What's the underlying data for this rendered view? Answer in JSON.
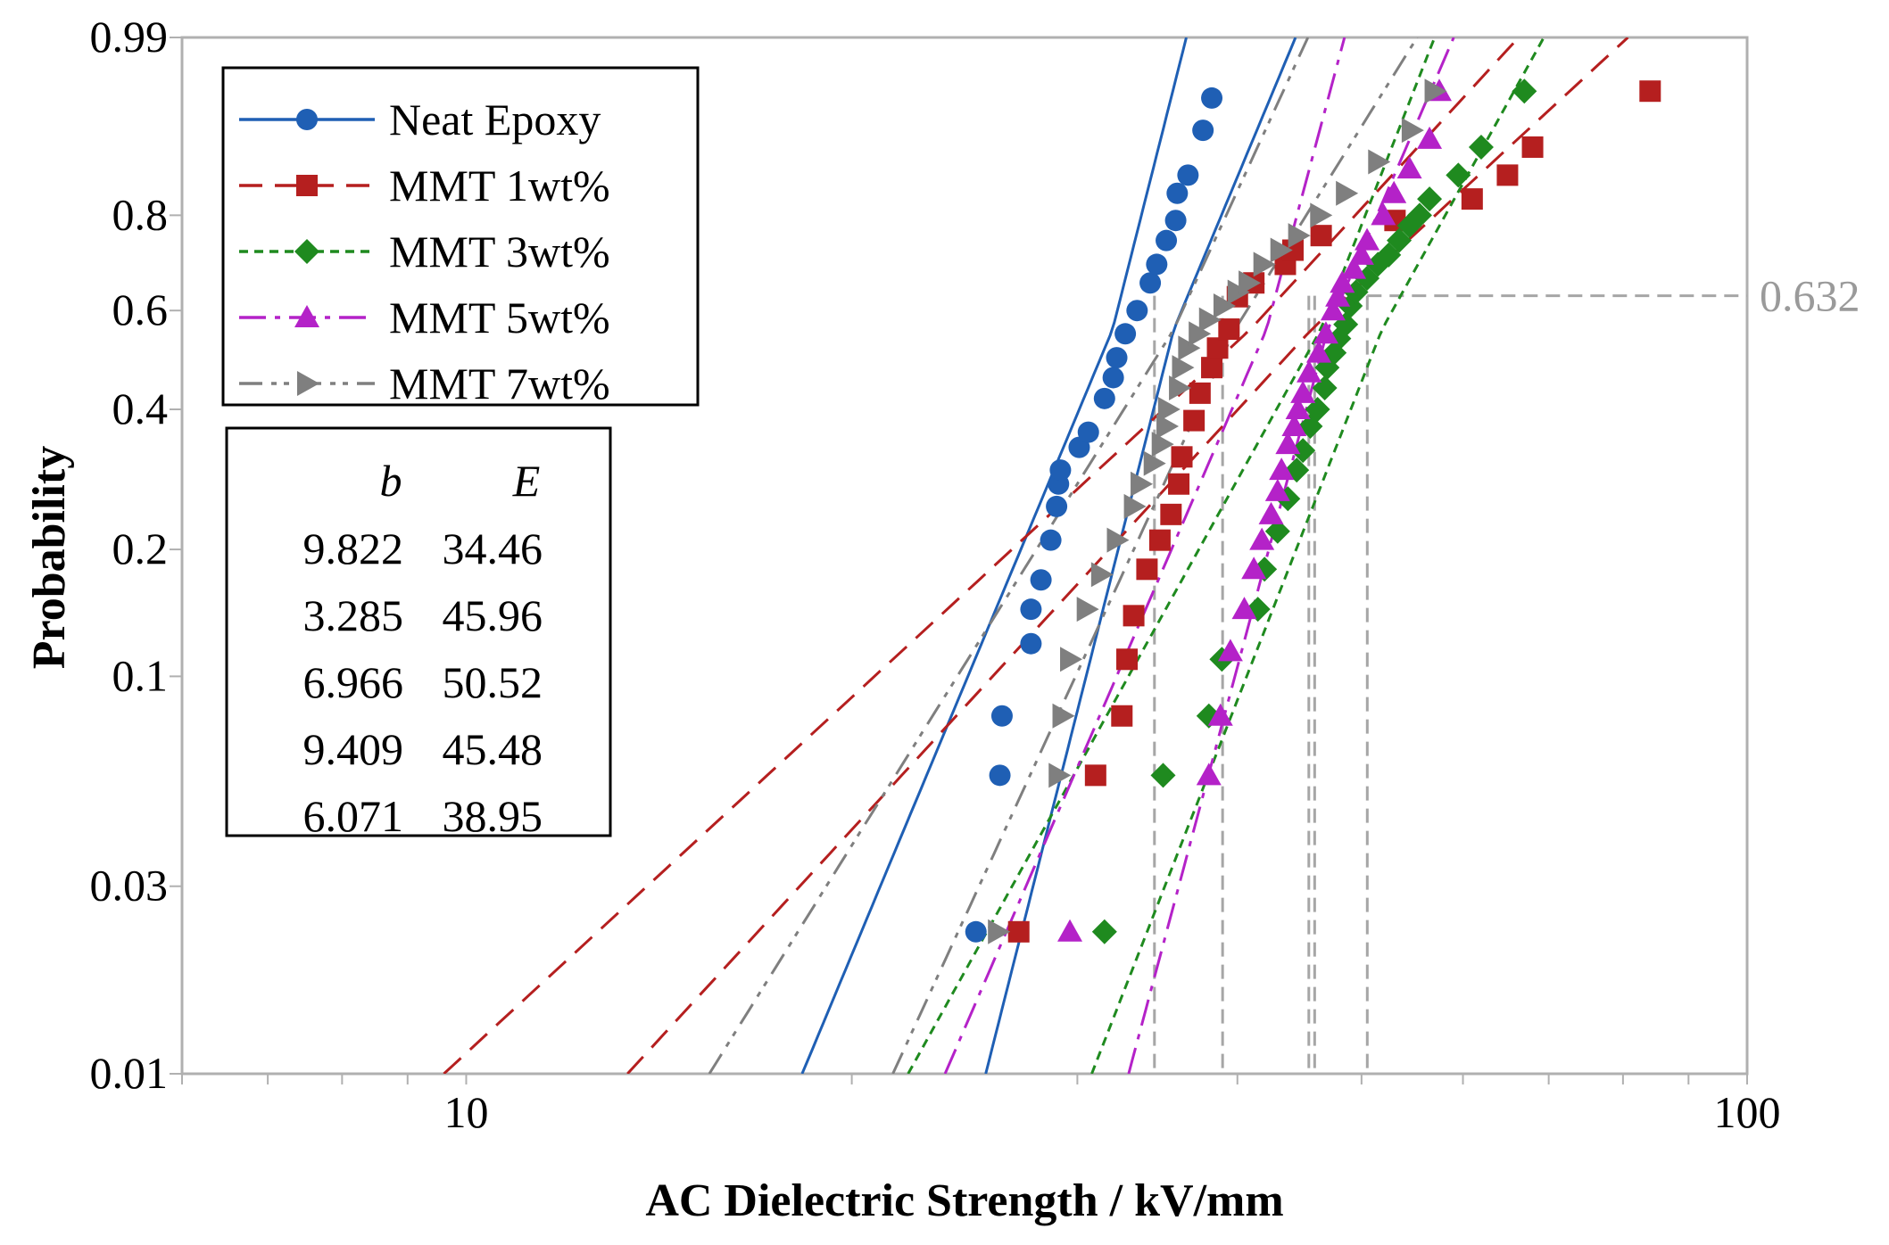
{
  "chart_data": {
    "type": "scatter",
    "subtype": "weibull-probability-plot",
    "title": "",
    "xlabel": "AC Dielectric Strength / kV/mm",
    "ylabel": "Probability",
    "x_scale": "log",
    "xlim": [
      6,
      100
    ],
    "ylim": [
      0.01,
      0.99
    ],
    "x_ticks": [
      10,
      100
    ],
    "x_tick_labels": [
      "10",
      "100"
    ],
    "y_ticks": [
      0.01,
      0.03,
      0.1,
      0.2,
      0.4,
      0.6,
      0.8,
      0.99
    ],
    "y_tick_labels": [
      "0.01",
      "0.03",
      "0.1",
      "0.2",
      "0.4",
      "0.6",
      "0.8",
      "0.99"
    ],
    "reference": {
      "probability": 0.632,
      "label": "0.632"
    },
    "table": {
      "header_b": "b",
      "header_e": "E"
    },
    "series": [
      {
        "name": "Neat Epoxy",
        "b": "9.822",
        "E": "34.46",
        "color": "#1f5fb4",
        "marker": "circle",
        "line": "solid",
        "points": [
          [
            25.0,
            0.023
          ],
          [
            26.1,
            0.057
          ],
          [
            26.2,
            0.08
          ],
          [
            27.6,
            0.12
          ],
          [
            27.6,
            0.145
          ],
          [
            28.1,
            0.17
          ],
          [
            28.6,
            0.21
          ],
          [
            28.9,
            0.25
          ],
          [
            29.0,
            0.28
          ],
          [
            29.1,
            0.3
          ],
          [
            30.1,
            0.335
          ],
          [
            30.6,
            0.36
          ],
          [
            31.5,
            0.42
          ],
          [
            32.0,
            0.46
          ],
          [
            32.2,
            0.5
          ],
          [
            32.7,
            0.55
          ],
          [
            33.4,
            0.6
          ],
          [
            34.2,
            0.66
          ],
          [
            34.6,
            0.7
          ],
          [
            35.2,
            0.75
          ],
          [
            35.8,
            0.79
          ],
          [
            35.9,
            0.84
          ],
          [
            36.6,
            0.87
          ],
          [
            37.6,
            0.93
          ],
          [
            38.2,
            0.96
          ]
        ]
      },
      {
        "name": "MMT 1wt%",
        "b": "3.285",
        "E": "45.96",
        "color": "#b51f1f",
        "marker": "square",
        "line": "dash",
        "points": [
          [
            27.0,
            0.023
          ],
          [
            31.0,
            0.057
          ],
          [
            32.5,
            0.08
          ],
          [
            32.8,
            0.11
          ],
          [
            33.2,
            0.14
          ],
          [
            34.0,
            0.18
          ],
          [
            34.8,
            0.21
          ],
          [
            35.5,
            0.24
          ],
          [
            36.0,
            0.28
          ],
          [
            36.2,
            0.32
          ],
          [
            37.0,
            0.38
          ],
          [
            37.4,
            0.43
          ],
          [
            38.2,
            0.48
          ],
          [
            38.6,
            0.52
          ],
          [
            39.4,
            0.56
          ],
          [
            40.0,
            0.63
          ],
          [
            41.2,
            0.66
          ],
          [
            43.6,
            0.7
          ],
          [
            44.2,
            0.73
          ],
          [
            46.5,
            0.76
          ],
          [
            53.1,
            0.79
          ],
          [
            61.0,
            0.83
          ],
          [
            65.0,
            0.87
          ],
          [
            68.0,
            0.91
          ],
          [
            84.0,
            0.965
          ]
        ]
      },
      {
        "name": "MMT 3wt%",
        "b": "6.966",
        "E": "50.52",
        "color": "#1f8a1f",
        "marker": "diamond",
        "line": "dot",
        "points": [
          [
            31.5,
            0.023
          ],
          [
            35.0,
            0.057
          ],
          [
            38.0,
            0.08
          ],
          [
            38.9,
            0.11
          ],
          [
            41.5,
            0.145
          ],
          [
            42.0,
            0.18
          ],
          [
            43.0,
            0.22
          ],
          [
            43.8,
            0.26
          ],
          [
            44.5,
            0.3
          ],
          [
            45.0,
            0.33
          ],
          [
            45.6,
            0.37
          ],
          [
            46.2,
            0.4
          ],
          [
            46.8,
            0.44
          ],
          [
            47.0,
            0.48
          ],
          [
            47.6,
            0.51
          ],
          [
            48.0,
            0.54
          ],
          [
            48.6,
            0.57
          ],
          [
            49.0,
            0.61
          ],
          [
            49.5,
            0.64
          ],
          [
            50.5,
            0.67
          ],
          [
            51.5,
            0.7
          ],
          [
            52.5,
            0.72
          ],
          [
            53.5,
            0.75
          ],
          [
            54.5,
            0.78
          ],
          [
            55.5,
            0.8
          ],
          [
            56.5,
            0.83
          ],
          [
            59.5,
            0.87
          ],
          [
            62.0,
            0.91
          ],
          [
            67.0,
            0.965
          ]
        ]
      },
      {
        "name": "MMT 5wt%",
        "b": "9.409",
        "E": "45.48",
        "color": "#b422c8",
        "marker": "triangle-up",
        "line": "dashdot",
        "points": [
          [
            29.6,
            0.023
          ],
          [
            38.0,
            0.057
          ],
          [
            38.8,
            0.08
          ],
          [
            39.5,
            0.115
          ],
          [
            40.5,
            0.145
          ],
          [
            41.2,
            0.18
          ],
          [
            41.8,
            0.21
          ],
          [
            42.5,
            0.24
          ],
          [
            43.0,
            0.27
          ],
          [
            43.3,
            0.3
          ],
          [
            43.8,
            0.34
          ],
          [
            44.3,
            0.37
          ],
          [
            44.6,
            0.4
          ],
          [
            45.0,
            0.43
          ],
          [
            45.5,
            0.47
          ],
          [
            46.3,
            0.51
          ],
          [
            46.9,
            0.55
          ],
          [
            47.5,
            0.6
          ],
          [
            47.9,
            0.63
          ],
          [
            48.3,
            0.66
          ],
          [
            49.3,
            0.69
          ],
          [
            50.0,
            0.72
          ],
          [
            50.5,
            0.75
          ],
          [
            52.0,
            0.8
          ],
          [
            53.0,
            0.84
          ],
          [
            54.5,
            0.88
          ],
          [
            56.5,
            0.92
          ],
          [
            57.5,
            0.965
          ]
        ]
      },
      {
        "name": "MMT 7wt%",
        "b": "6.071",
        "E": "38.95",
        "color": "#7f7f7f",
        "marker": "triangle-right",
        "line": "dashdotdot",
        "points": [
          [
            26.0,
            0.023
          ],
          [
            29.0,
            0.057
          ],
          [
            29.2,
            0.08
          ],
          [
            29.6,
            0.11
          ],
          [
            30.5,
            0.145
          ],
          [
            31.3,
            0.175
          ],
          [
            32.2,
            0.21
          ],
          [
            33.2,
            0.25
          ],
          [
            33.6,
            0.28
          ],
          [
            34.4,
            0.31
          ],
          [
            34.9,
            0.34
          ],
          [
            35.2,
            0.37
          ],
          [
            35.3,
            0.4
          ],
          [
            36.0,
            0.44
          ],
          [
            36.2,
            0.48
          ],
          [
            36.6,
            0.52
          ],
          [
            37.3,
            0.55
          ],
          [
            38.0,
            0.58
          ],
          [
            39.0,
            0.61
          ],
          [
            40.0,
            0.64
          ],
          [
            40.8,
            0.66
          ],
          [
            41.9,
            0.7
          ],
          [
            43.2,
            0.73
          ],
          [
            44.6,
            0.76
          ],
          [
            46.4,
            0.8
          ],
          [
            48.6,
            0.84
          ],
          [
            51.5,
            0.89
          ],
          [
            54.7,
            0.93
          ],
          [
            57.0,
            0.965
          ]
        ]
      }
    ]
  }
}
